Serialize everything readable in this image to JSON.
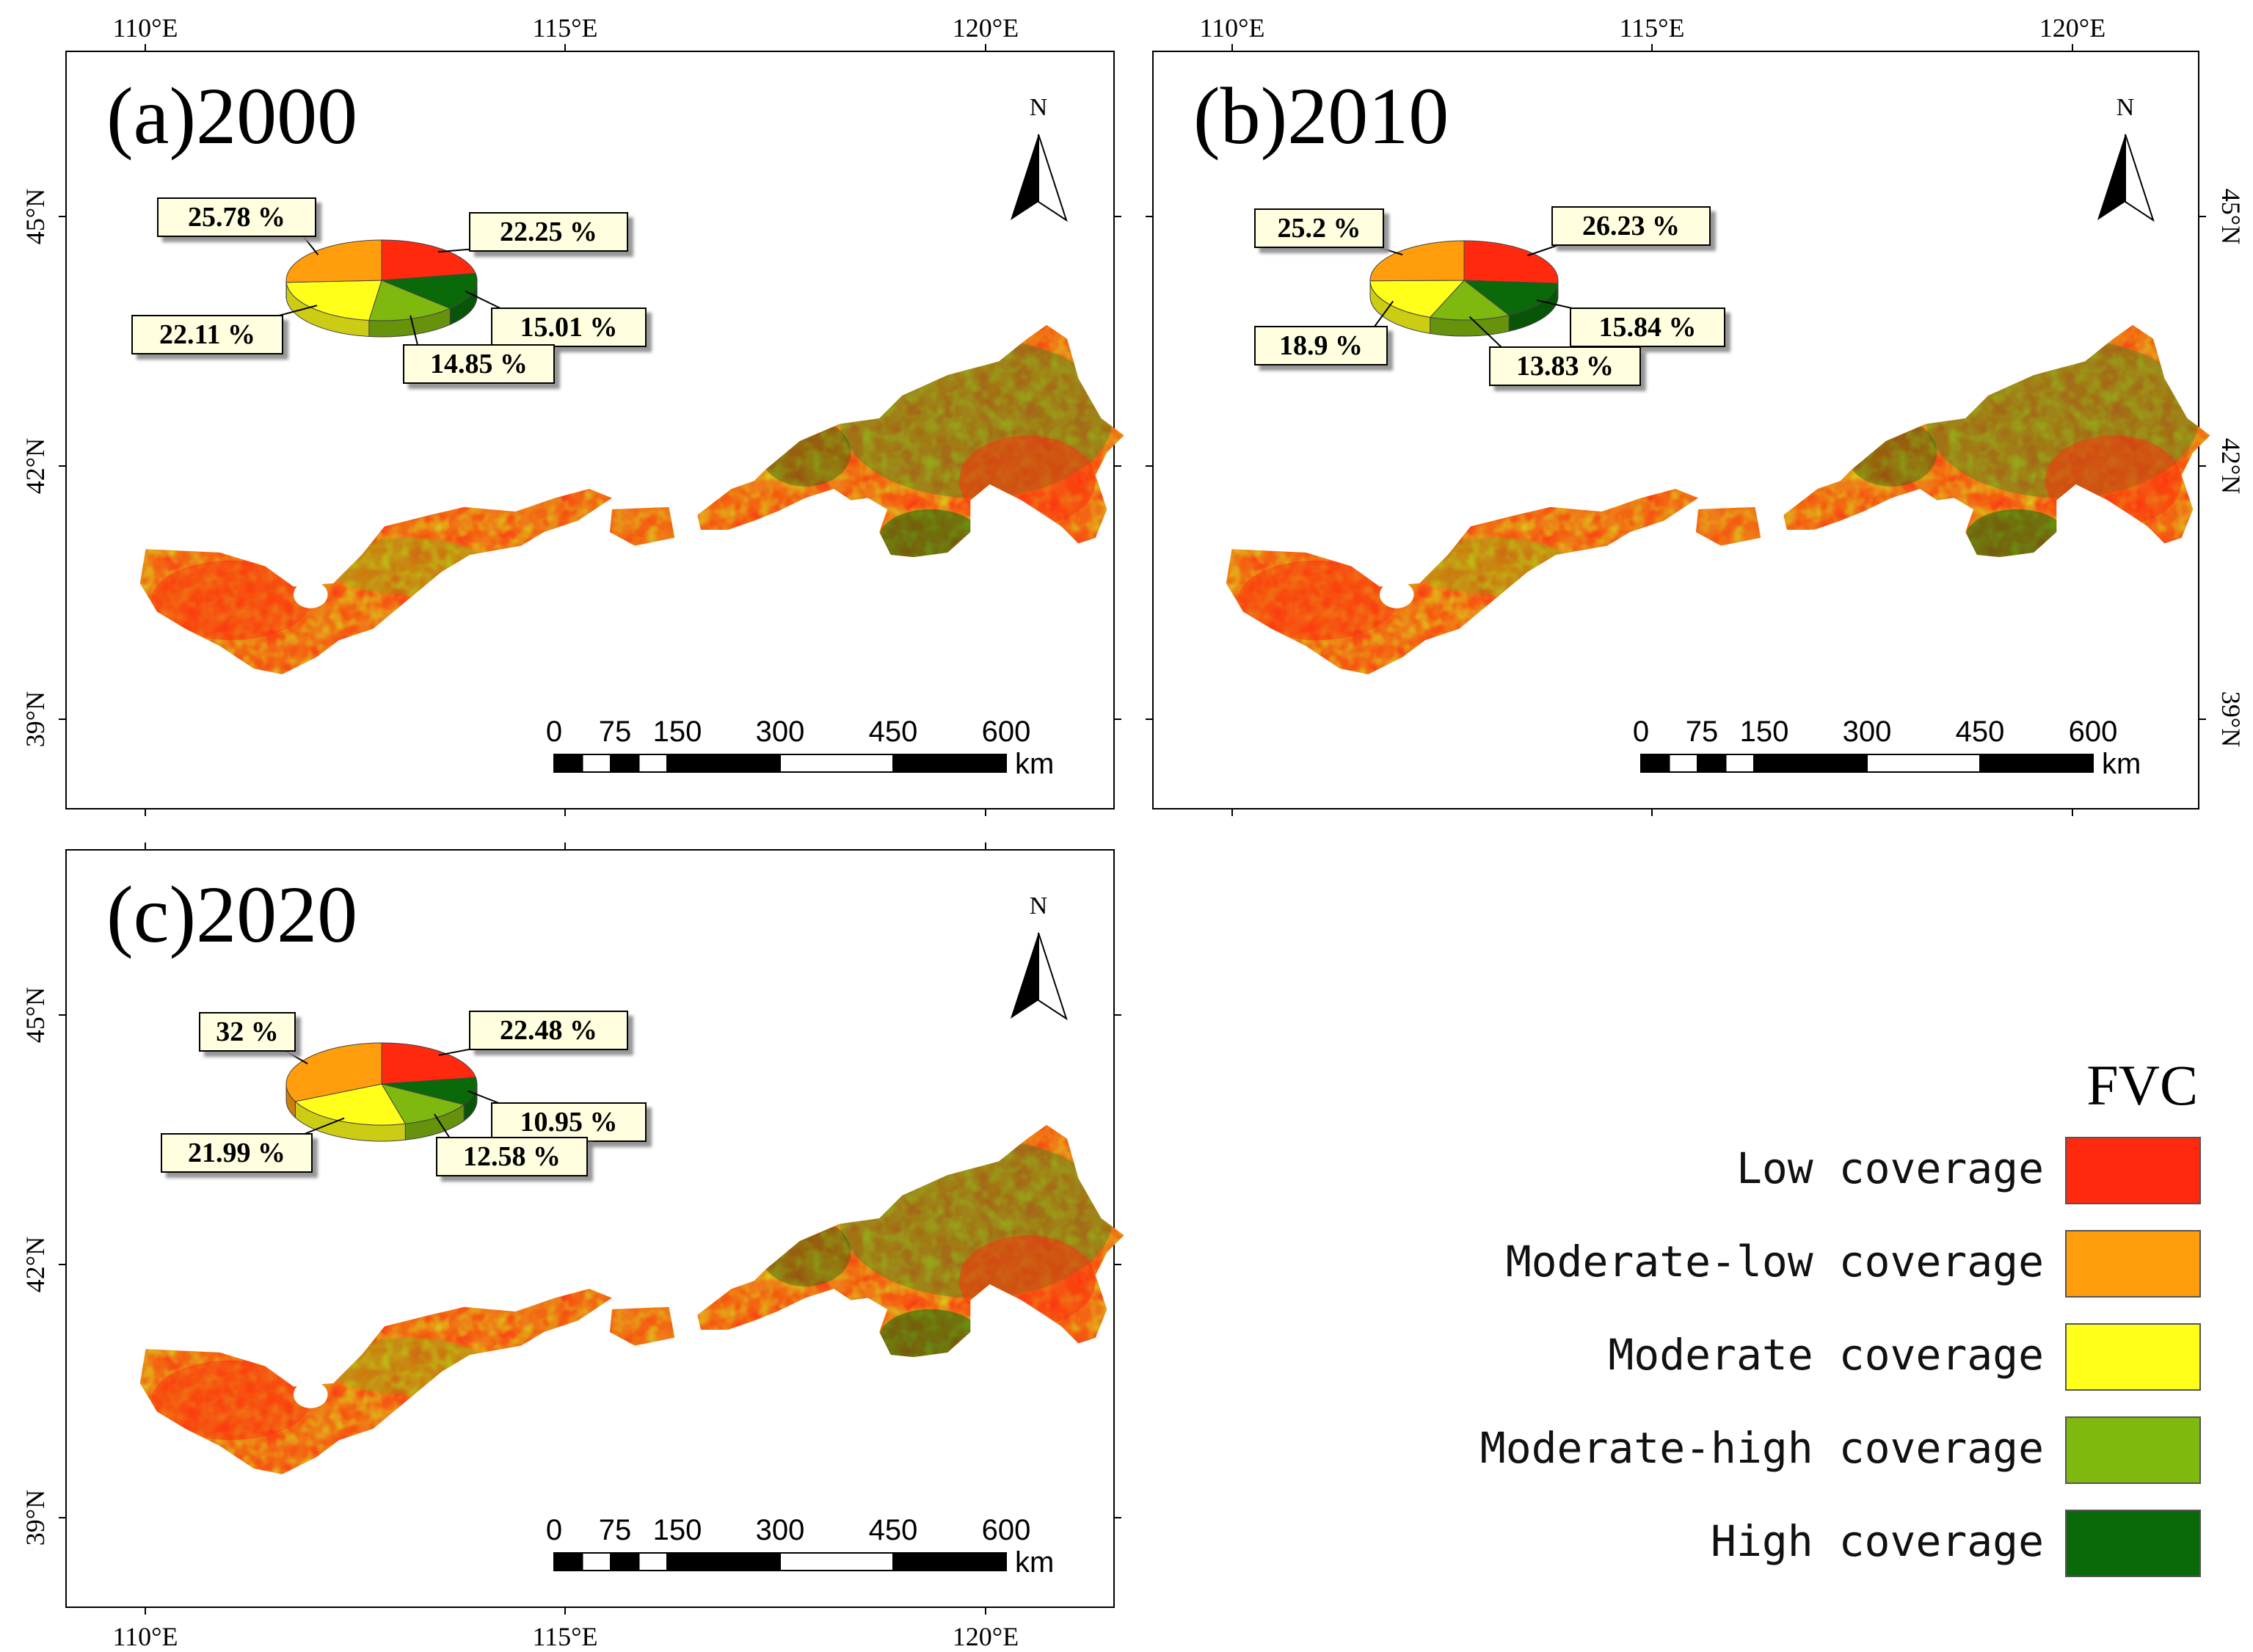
{
  "figure": {
    "panels": [
      {
        "id": "a",
        "title": "(a)2000",
        "pie": [
          {
            "category": "Low coverage",
            "percent": 22.25,
            "label": "22.25 %"
          },
          {
            "category": "High coverage",
            "percent": 15.01,
            "label": "15.01 %"
          },
          {
            "category": "Moderate-high coverage",
            "percent": 14.85,
            "label": "14.85 %"
          },
          {
            "category": "Moderate coverage",
            "percent": 22.11,
            "label": "22.11 %"
          },
          {
            "category": "Moderate-low coverage",
            "percent": 25.78,
            "label": "25.78 %"
          }
        ]
      },
      {
        "id": "b",
        "title": "(b)2010",
        "pie": [
          {
            "category": "Low coverage",
            "percent": 26.23,
            "label": "26.23 %"
          },
          {
            "category": "High coverage",
            "percent": 15.84,
            "label": "15.84 %"
          },
          {
            "category": "Moderate-high coverage",
            "percent": 13.83,
            "label": "13.83 %"
          },
          {
            "category": "Moderate coverage",
            "percent": 18.9,
            "label": "18.9 %"
          },
          {
            "category": "Moderate-low coverage",
            "percent": 25.2,
            "label": "25.2 %"
          }
        ]
      },
      {
        "id": "c",
        "title": "(c)2020",
        "pie": [
          {
            "category": "Low coverage",
            "percent": 22.48,
            "label": "22.48 %"
          },
          {
            "category": "High coverage",
            "percent": 10.95,
            "label": "10.95 %"
          },
          {
            "category": "Moderate-high coverage",
            "percent": 12.58,
            "label": "12.58 %"
          },
          {
            "category": "Moderate coverage",
            "percent": 21.99,
            "label": "21.99 %"
          },
          {
            "category": "Moderate-low coverage",
            "percent": 32,
            "label": "32 %"
          }
        ]
      }
    ],
    "lon_ticks": [
      "110°E",
      "115°E",
      "120°E"
    ],
    "lat_ticks": [
      "45°N",
      "42°N",
      "39°N"
    ],
    "north_label": "N",
    "scale_bar": {
      "ticks": [
        "0",
        "75",
        "150",
        "300",
        "450",
        "600"
      ],
      "unit": "km"
    },
    "legend": {
      "title": "FVC",
      "items": [
        {
          "label": "Low coverage",
          "color": "#ff2a0e"
        },
        {
          "label": "Moderate-low coverage",
          "color": "#ff9d0c"
        },
        {
          "label": "Moderate coverage",
          "color": "#ffff1a"
        },
        {
          "label": "Moderate-high coverage",
          "color": "#7fb80e"
        },
        {
          "label": "High coverage",
          "color": "#0a6a0a"
        }
      ]
    }
  },
  "chart_data": [
    {
      "type": "pie",
      "title": "(a)2000",
      "categories": [
        "Low coverage",
        "High coverage",
        "Moderate-high coverage",
        "Moderate coverage",
        "Moderate-low coverage"
      ],
      "values": [
        22.25,
        15.01,
        14.85,
        22.11,
        25.78
      ]
    },
    {
      "type": "pie",
      "title": "(b)2010",
      "categories": [
        "Low coverage",
        "High coverage",
        "Moderate-high coverage",
        "Moderate coverage",
        "Moderate-low coverage"
      ],
      "values": [
        26.23,
        15.84,
        13.83,
        18.9,
        25.2
      ]
    },
    {
      "type": "pie",
      "title": "(c)2020",
      "categories": [
        "Low coverage",
        "High coverage",
        "Moderate-high coverage",
        "Moderate coverage",
        "Moderate-low coverage"
      ],
      "values": [
        22.48,
        10.95,
        12.58,
        21.99,
        32
      ]
    }
  ]
}
